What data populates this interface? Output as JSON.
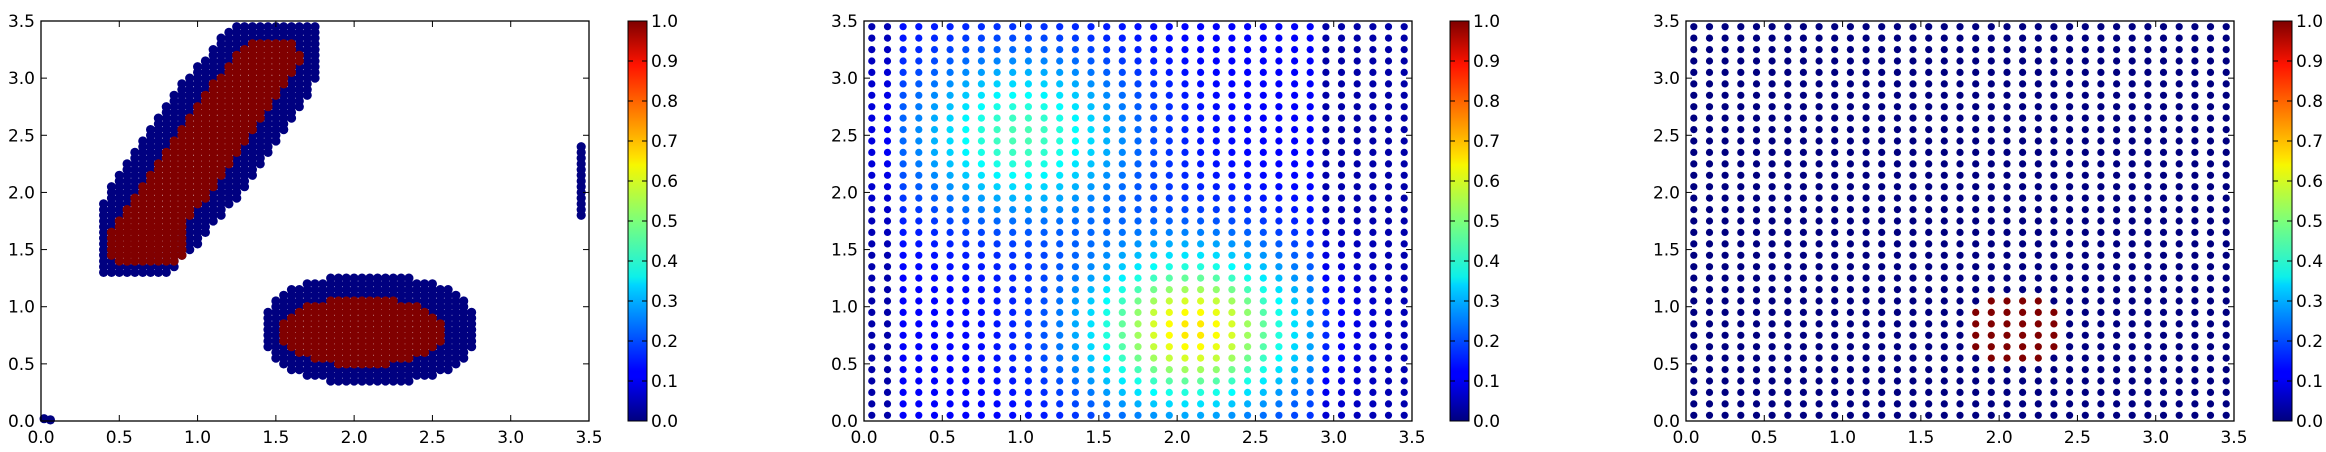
{
  "figure": {
    "title": ""
  },
  "colorbar": {
    "ticks": [
      "0.0",
      "0.1",
      "0.2",
      "0.3",
      "0.4",
      "0.5",
      "0.6",
      "0.7",
      "0.8",
      "0.9",
      "1.0"
    ],
    "colormap": "jet"
  },
  "chart_data": [
    {
      "type": "scatter",
      "title": "",
      "xlabel": "",
      "ylabel": "",
      "xlim": [
        0,
        3.5
      ],
      "ylim": [
        0,
        3.5
      ],
      "xticks": [
        "0.0",
        "0.5",
        "1.0",
        "1.5",
        "2.0",
        "2.5",
        "3.0",
        "3.5"
      ],
      "yticks": [
        "0.0",
        "0.5",
        "1.0",
        "1.5",
        "2.0",
        "2.5",
        "3.0",
        "3.5"
      ],
      "grid": false,
      "colorbar_range": [
        0,
        1
      ],
      "point_spacing": 0.1,
      "description_of_points": "Clustered grid points colored 0 (dark blue boundary) and 1 (dark red core)",
      "clusters": [
        {
          "name": "upper-left diagonal blob",
          "shape": "diagonal band",
          "from": [
            0.55,
            1.45
          ],
          "to": [
            1.6,
            3.45
          ],
          "value_core": 1.0,
          "value_edge": 0.0
        },
        {
          "name": "lower-right blob",
          "center": [
            2.1,
            0.8
          ],
          "extent_x": [
            1.4,
            2.75
          ],
          "extent_y": [
            0.35,
            1.3
          ],
          "value_core": 1.0,
          "value_edge": 0.0
        },
        {
          "name": "right edge column",
          "x": 3.45,
          "y_range": [
            1.8,
            2.4
          ],
          "value": 0.0
        },
        {
          "name": "origin point",
          "x": 0.02,
          "y": 0.02,
          "value": 0.0
        }
      ]
    },
    {
      "type": "scatter",
      "title": "",
      "xlabel": "",
      "ylabel": "",
      "xlim": [
        0,
        3.5
      ],
      "ylim": [
        0,
        3.5
      ],
      "xticks": [
        "0.0",
        "0.5",
        "1.0",
        "1.5",
        "2.0",
        "2.5",
        "3.0",
        "3.5"
      ],
      "yticks": [
        "0.0",
        "0.5",
        "1.0",
        "1.5",
        "2.0",
        "2.5",
        "3.0",
        "3.5"
      ],
      "grid": false,
      "colorbar_range": [
        0,
        1
      ],
      "grid_points": {
        "x_start": 0.05,
        "x_end": 3.45,
        "y_start": 0.05,
        "y_end": 3.45,
        "step": 0.1
      },
      "value_model": "sum of two soft peaks",
      "peaks": [
        {
          "center": [
            1.0,
            2.5
          ],
          "peak_value": 0.45
        },
        {
          "center": [
            2.1,
            0.8
          ],
          "peak_value": 0.65
        }
      ],
      "baseline_value": 0.12
    },
    {
      "type": "scatter",
      "title": "",
      "xlabel": "",
      "ylabel": "",
      "xlim": [
        0,
        3.5
      ],
      "ylim": [
        0,
        3.5
      ],
      "xticks": [
        "0.0",
        "0.5",
        "1.0",
        "1.5",
        "2.0",
        "2.5",
        "3.0",
        "3.5"
      ],
      "yticks": [
        "0.0",
        "0.5",
        "1.0",
        "1.5",
        "2.0",
        "2.5",
        "3.0",
        "3.5"
      ],
      "grid": false,
      "colorbar_range": [
        0,
        1
      ],
      "grid_points": {
        "x_start": 0.05,
        "x_end": 3.45,
        "y_start": 0.05,
        "y_end": 3.45,
        "step": 0.1
      },
      "baseline_value": 0.0,
      "hot_region": {
        "center": [
          2.1,
          0.8
        ],
        "radius": 0.3,
        "value": 1.0
      }
    }
  ]
}
